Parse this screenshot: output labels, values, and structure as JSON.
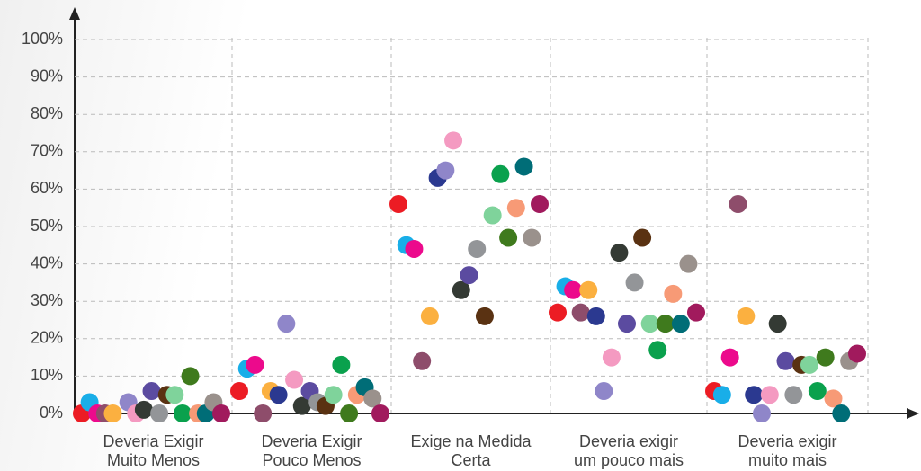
{
  "chart_data": {
    "type": "strip",
    "categories": [
      "Deveria Exigir Muito Menos",
      "Deveria Exigir Pouco Menos",
      "Exige na Medida Certa",
      "Deveria exigir um pouco mais",
      "Deveria exigir muito mais"
    ],
    "ylim": [
      0,
      100
    ],
    "yticks": [
      {
        "value": 0,
        "label": "0%"
      },
      {
        "value": 10,
        "label": "10%"
      },
      {
        "value": 20,
        "label": "20%"
      },
      {
        "value": 30,
        "label": "30%"
      },
      {
        "value": 40,
        "label": "40%"
      },
      {
        "value": 50,
        "label": "50%"
      },
      {
        "value": 60,
        "label": "60%"
      },
      {
        "value": 70,
        "label": "70%"
      },
      {
        "value": 80,
        "label": "80%"
      },
      {
        "value": 90,
        "label": "90%"
      },
      {
        "value": 100,
        "label": "100%"
      }
    ],
    "grid": true,
    "series": [
      {
        "color": "#ec1c24",
        "values": [
          0,
          6,
          56,
          27,
          6
        ]
      },
      {
        "color": "#19aee8",
        "values": [
          3,
          12,
          45,
          34,
          5
        ]
      },
      {
        "color": "#ec0a8c",
        "values": [
          0,
          13,
          44,
          33,
          15
        ]
      },
      {
        "color": "#8e4d6b",
        "values": [
          0,
          0,
          14,
          27,
          56
        ]
      },
      {
        "color": "#fbb040",
        "values": [
          0,
          6,
          26,
          33,
          26
        ]
      },
      {
        "color": "#2b3990",
        "values": [
          null,
          5,
          63,
          26,
          5
        ]
      },
      {
        "color": "#8f86c9",
        "values": [
          3,
          24,
          65,
          6,
          0
        ]
      },
      {
        "color": "#f49ac1",
        "values": [
          0,
          9,
          73,
          15,
          5
        ]
      },
      {
        "color": "#343a34",
        "values": [
          1,
          2,
          33,
          43,
          24
        ]
      },
      {
        "color": "#5b4ba0",
        "values": [
          6,
          6,
          37,
          24,
          14
        ]
      },
      {
        "color": "#939598",
        "values": [
          0,
          3,
          44,
          35,
          5
        ]
      },
      {
        "color": "#5a3212",
        "values": [
          5,
          2,
          26,
          47,
          13
        ]
      },
      {
        "color": "#7fd39b",
        "values": [
          5,
          5,
          53,
          24,
          13
        ]
      },
      {
        "color": "#0aa14d",
        "values": [
          0,
          13,
          64,
          17,
          6
        ]
      },
      {
        "color": "#3f7a1d",
        "values": [
          10,
          0,
          47,
          24,
          15
        ]
      },
      {
        "color": "#f79a76",
        "values": [
          0,
          5,
          55,
          32,
          4
        ]
      },
      {
        "color": "#006d77",
        "values": [
          0,
          7,
          66,
          24,
          0
        ]
      },
      {
        "color": "#9a918c",
        "values": [
          3,
          4,
          47,
          40,
          14
        ]
      },
      {
        "color": "#a11a5d",
        "values": [
          0,
          0,
          56,
          27,
          16
        ]
      }
    ]
  }
}
